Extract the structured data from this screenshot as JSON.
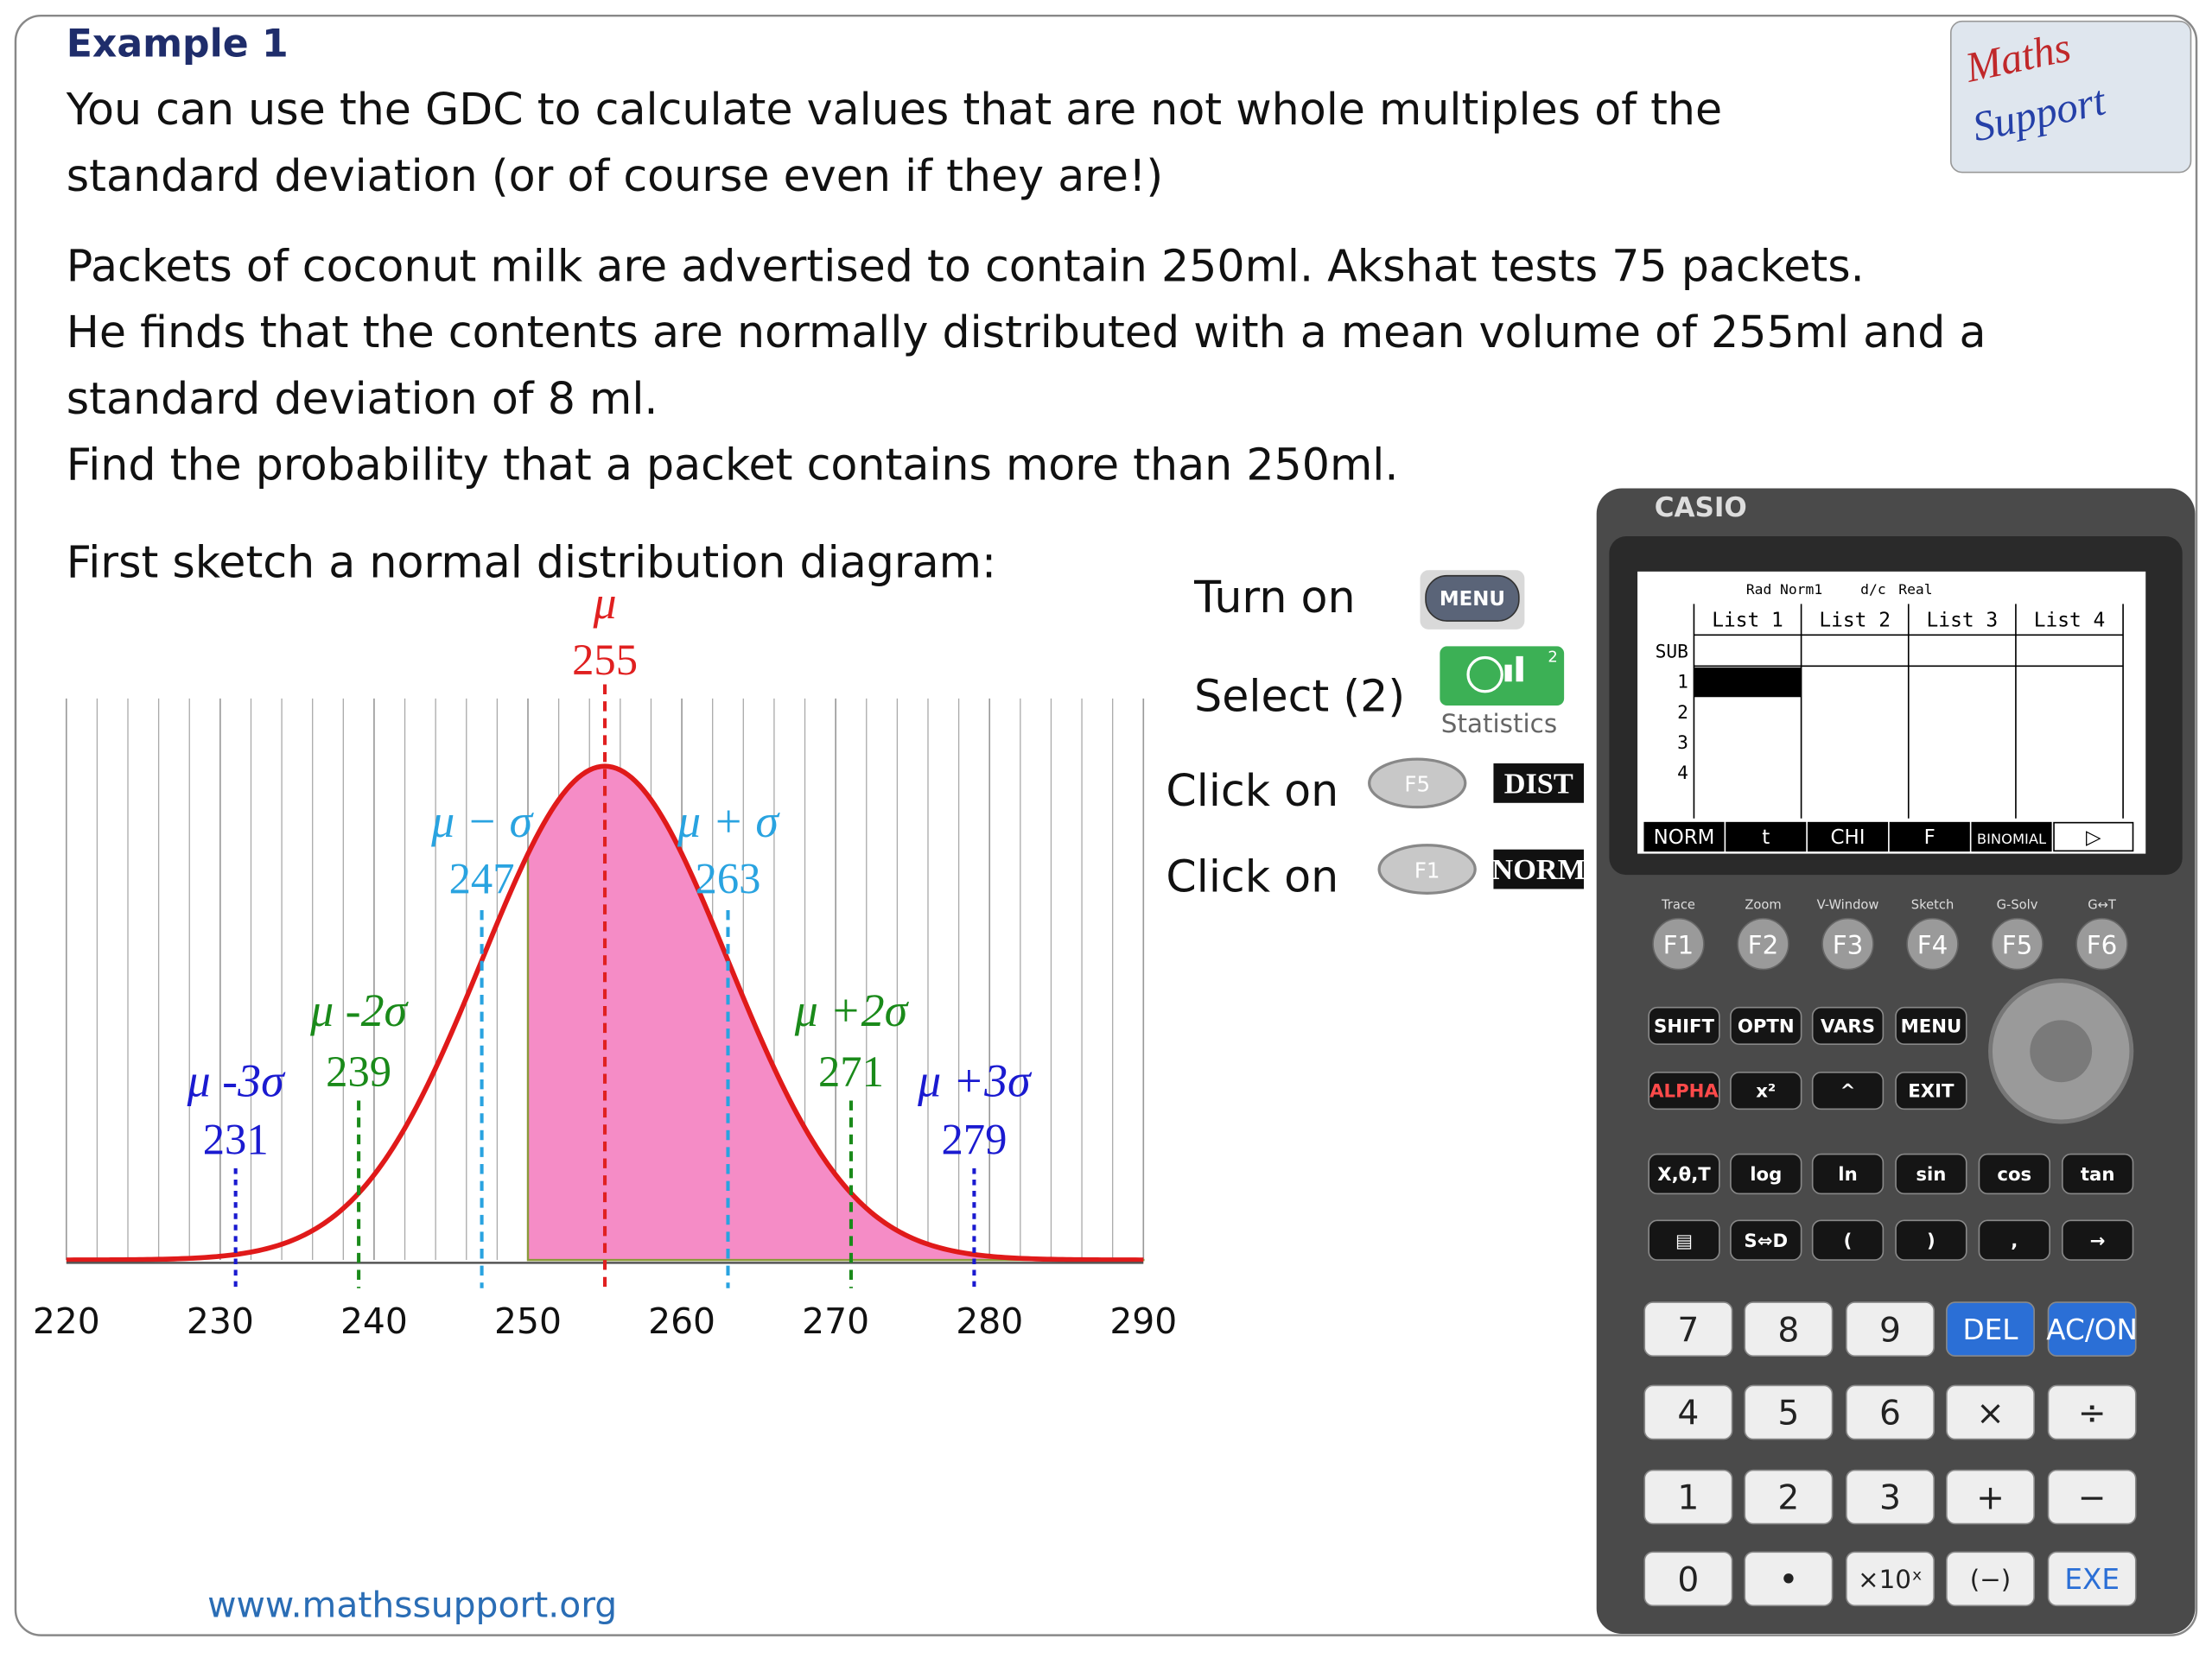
{
  "header": {
    "title": "Example 1",
    "intro": [
      "You can use the GDC to calculate values that are not whole multiples of the",
      "standard deviation (or of course even if they are!)"
    ]
  },
  "logo": [
    "Maths",
    "Support"
  ],
  "problem": [
    "Packets of coconut milk are advertised to contain 250ml.  Akshat tests 75 packets.",
    "He finds that the contents are normally distributed with a mean volume of 255ml and a",
    "standard deviation of 8 ml.",
    "Find the probability that a packet contains more than 250ml."
  ],
  "sketch_prompt": "First sketch a normal distribution diagram:",
  "diagram": {
    "mean": 255,
    "sd": 8,
    "shade_from": 250,
    "xlim": [
      220,
      290
    ],
    "xticks": [
      220,
      230,
      240,
      250,
      260,
      270,
      280,
      290
    ],
    "markers": [
      {
        "label": "μ -3σ",
        "value": 231,
        "color": "#1a1ad0"
      },
      {
        "label": "μ -2σ",
        "value": 239,
        "color": "#1a8a1a"
      },
      {
        "label": "μ − σ",
        "value": 247,
        "color": "#29a3e0"
      },
      {
        "label": "μ",
        "value": 255,
        "color": "#e02020"
      },
      {
        "label": "μ + σ",
        "value": 263,
        "color": "#29a3e0"
      },
      {
        "label": "μ +2σ",
        "value": 271,
        "color": "#1a8a1a"
      },
      {
        "label": "μ +3σ",
        "value": 279,
        "color": "#1a1ad0"
      }
    ]
  },
  "steps": [
    {
      "text": "Turn on",
      "button": "MENU"
    },
    {
      "text": "Select (2)",
      "button": "Statistics",
      "badge": "2"
    },
    {
      "text": "Click on",
      "button": "F5",
      "screen_key": "DIST"
    },
    {
      "text": "Click on",
      "button": "F1",
      "screen_key": "NORM"
    }
  ],
  "footer": "www.mathssupport.org",
  "calculator": {
    "brand": "CASIO",
    "status": [
      "Rad",
      "Norm1",
      "d/c",
      "Real"
    ],
    "columns": [
      "List 1",
      "List 2",
      "List 3",
      "List 4"
    ],
    "rows": [
      "SUB",
      "1",
      "2",
      "3",
      "4"
    ],
    "menu": [
      "NORM",
      "t",
      "CHI",
      "F",
      "BINOMIAL",
      "▷"
    ],
    "fkey_labels": [
      "Trace",
      "Zoom",
      "V-Window",
      "Sketch",
      "G-Solv",
      "G↔T"
    ],
    "fkeys": [
      "F1",
      "F2",
      "F3",
      "F4",
      "F5",
      "F6"
    ],
    "keys": [
      [
        "SHIFT",
        "OPTN",
        "VARS",
        "MENU"
      ],
      [
        "ALPHA",
        "x²",
        "^",
        "EXIT"
      ],
      [
        "X,θ,T",
        "log",
        "ln",
        "sin",
        "cos",
        "tan"
      ],
      [
        "▤",
        "S⇔D",
        "(",
        ")",
        ",",
        "→"
      ],
      [
        "7",
        "8",
        "9",
        "DEL",
        "AC/ON"
      ],
      [
        "4",
        "5",
        "6",
        "×",
        "÷"
      ],
      [
        "1",
        "2",
        "3",
        "+",
        "−"
      ],
      [
        "0",
        "•",
        "×10ˣ",
        "(−)",
        "EXE"
      ]
    ]
  }
}
